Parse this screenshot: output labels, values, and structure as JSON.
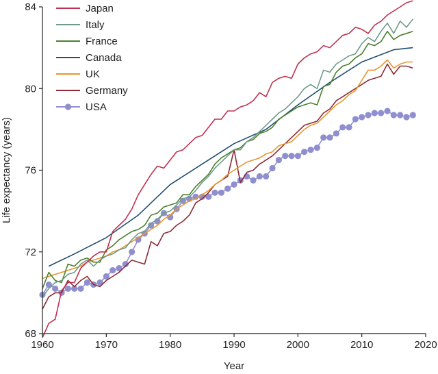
{
  "chart_data": {
    "type": "line",
    "xlabel": "Year",
    "ylabel": "Life expectancy (years)",
    "xlim": [
      1960,
      2020
    ],
    "ylim": [
      68,
      84
    ],
    "xticks": [
      "1960",
      "1970",
      "1980",
      "1990",
      "2000",
      "2010",
      "2020"
    ],
    "yticks": [
      "68",
      "72",
      "76",
      "80",
      "84"
    ],
    "grid": false,
    "legend_position": "top-left",
    "series": [
      {
        "name": "Japan",
        "color": "#c0304f",
        "marker": "none",
        "x": [
          1960,
          1961,
          1962,
          1963,
          1964,
          1965,
          1966,
          1967,
          1968,
          1969,
          1970,
          1971,
          1972,
          1973,
          1974,
          1975,
          1976,
          1977,
          1978,
          1979,
          1980,
          1981,
          1982,
          1983,
          1984,
          1985,
          1986,
          1987,
          1988,
          1989,
          1990,
          1991,
          1992,
          1993,
          1994,
          1995,
          1996,
          1997,
          1998,
          1999,
          2000,
          2001,
          2002,
          2003,
          2004,
          2005,
          2006,
          2007,
          2008,
          2009,
          2010,
          2011,
          2012,
          2013,
          2014,
          2015,
          2016,
          2017,
          2018
        ],
        "y": [
          67.8,
          68.5,
          68.7,
          70.1,
          70.5,
          70.5,
          71.2,
          71.5,
          71.8,
          72.0,
          72.0,
          73.0,
          73.3,
          73.6,
          74.1,
          74.8,
          75.3,
          75.8,
          76.2,
          76.1,
          76.5,
          76.9,
          77.0,
          77.3,
          77.6,
          77.7,
          78.1,
          78.5,
          78.5,
          78.9,
          78.9,
          79.1,
          79.2,
          79.4,
          79.8,
          79.6,
          80.3,
          80.5,
          80.6,
          80.5,
          81.2,
          81.5,
          81.7,
          81.8,
          82.1,
          82.0,
          82.3,
          82.6,
          82.7,
          83.0,
          82.9,
          82.7,
          83.1,
          83.3,
          83.6,
          83.8,
          84.0,
          84.2,
          84.3
        ]
      },
      {
        "name": "Italy",
        "color": "#6e9b8a",
        "marker": "none",
        "x": [
          1960,
          1961,
          1962,
          1963,
          1964,
          1965,
          1966,
          1967,
          1968,
          1969,
          1970,
          1971,
          1972,
          1973,
          1974,
          1975,
          1976,
          1977,
          1978,
          1979,
          1980,
          1981,
          1982,
          1983,
          1984,
          1985,
          1986,
          1987,
          1988,
          1989,
          1990,
          1991,
          1992,
          1993,
          1994,
          1995,
          1996,
          1997,
          1998,
          1999,
          2000,
          2001,
          2002,
          2003,
          2004,
          2005,
          2006,
          2007,
          2008,
          2009,
          2010,
          2011,
          2012,
          2013,
          2014,
          2015,
          2016,
          2017,
          2018
        ],
        "y": [
          69.8,
          70.2,
          70.5,
          70.6,
          70.9,
          71.0,
          71.4,
          71.6,
          71.3,
          71.6,
          71.8,
          71.9,
          72.1,
          72.2,
          72.6,
          72.9,
          73.0,
          73.4,
          73.6,
          73.9,
          74.0,
          74.3,
          74.6,
          74.7,
          75.0,
          75.4,
          75.7,
          76.1,
          76.4,
          76.7,
          77.0,
          77.0,
          77.4,
          77.6,
          77.9,
          78.2,
          78.5,
          78.8,
          79.0,
          79.3,
          79.6,
          80.0,
          80.2,
          80.0,
          80.9,
          80.8,
          81.2,
          81.4,
          81.6,
          81.7,
          82.2,
          82.5,
          82.3,
          82.8,
          83.2,
          82.7,
          83.3,
          83.0,
          83.4
        ]
      },
      {
        "name": "France",
        "color": "#4a7f2e",
        "marker": "none",
        "x": [
          1960,
          1961,
          1962,
          1963,
          1964,
          1965,
          1966,
          1967,
          1968,
          1969,
          1970,
          1971,
          1972,
          1973,
          1974,
          1975,
          1976,
          1977,
          1978,
          1979,
          1980,
          1981,
          1982,
          1983,
          1984,
          1985,
          1986,
          1987,
          1988,
          1989,
          1990,
          1991,
          1992,
          1993,
          1994,
          1995,
          1996,
          1997,
          1998,
          1999,
          2000,
          2001,
          2002,
          2003,
          2004,
          2005,
          2006,
          2007,
          2008,
          2009,
          2010,
          2011,
          2012,
          2013,
          2014,
          2015,
          2016,
          2017,
          2018
        ],
        "y": [
          70.2,
          71.0,
          70.6,
          70.5,
          71.4,
          71.3,
          71.6,
          71.7,
          71.5,
          71.5,
          72.1,
          72.3,
          72.6,
          72.8,
          73.0,
          73.1,
          73.3,
          73.8,
          73.9,
          74.2,
          74.3,
          74.4,
          74.8,
          74.8,
          75.2,
          75.5,
          75.8,
          76.3,
          76.6,
          76.8,
          77.0,
          77.1,
          77.4,
          77.5,
          77.8,
          77.9,
          78.1,
          78.5,
          78.7,
          78.9,
          79.1,
          79.2,
          79.3,
          79.2,
          80.1,
          80.2,
          80.8,
          81.1,
          81.2,
          81.5,
          81.7,
          82.2,
          82.1,
          82.3,
          82.8,
          82.4,
          82.6,
          82.7,
          82.8
        ]
      },
      {
        "name": "Canada",
        "color": "#1f4e6e",
        "marker": "none",
        "x": [
          1961,
          1965,
          1970,
          1975,
          1980,
          1985,
          1990,
          1995,
          2000,
          2005,
          2010,
          2015,
          2018
        ],
        "y": [
          71.3,
          71.9,
          72.7,
          73.8,
          75.3,
          76.3,
          77.3,
          78.0,
          79.2,
          80.3,
          81.3,
          81.9,
          82.0
        ]
      },
      {
        "name": "UK",
        "color": "#e8952d",
        "marker": "none",
        "x": [
          1960,
          1961,
          1962,
          1963,
          1964,
          1965,
          1966,
          1967,
          1968,
          1969,
          1970,
          1971,
          1972,
          1973,
          1974,
          1975,
          1976,
          1977,
          1978,
          1979,
          1980,
          1981,
          1982,
          1983,
          1984,
          1985,
          1986,
          1987,
          1988,
          1989,
          1990,
          1991,
          1992,
          1993,
          1994,
          1995,
          1996,
          1997,
          1998,
          1999,
          2000,
          2001,
          2002,
          2003,
          2004,
          2005,
          2006,
          2007,
          2008,
          2009,
          2010,
          2011,
          2012,
          2013,
          2014,
          2015,
          2016,
          2017,
          2018
        ],
        "y": [
          70.7,
          70.8,
          70.9,
          71.0,
          71.1,
          71.2,
          71.3,
          71.5,
          71.6,
          71.7,
          71.8,
          72.0,
          72.1,
          72.3,
          72.5,
          72.7,
          72.9,
          73.1,
          73.3,
          73.6,
          73.8,
          74.1,
          74.3,
          74.5,
          74.6,
          74.8,
          75.0,
          75.3,
          75.5,
          75.8,
          76.0,
          76.2,
          76.4,
          76.5,
          76.6,
          76.8,
          76.9,
          77.2,
          77.3,
          77.4,
          77.7,
          78.0,
          78.2,
          78.3,
          78.6,
          78.9,
          79.2,
          79.4,
          79.7,
          79.9,
          80.4,
          80.9,
          80.9,
          81.1,
          81.4,
          81.0,
          81.2,
          81.3,
          81.3
        ]
      },
      {
        "name": "Germany",
        "color": "#8b2a35",
        "marker": "none",
        "x": [
          1960,
          1961,
          1962,
          1963,
          1964,
          1965,
          1966,
          1967,
          1968,
          1969,
          1970,
          1971,
          1972,
          1973,
          1974,
          1975,
          1976,
          1977,
          1978,
          1979,
          1980,
          1981,
          1982,
          1983,
          1984,
          1985,
          1986,
          1987,
          1988,
          1989,
          1990,
          1991,
          1992,
          1993,
          1994,
          1995,
          1996,
          1997,
          1998,
          1999,
          2000,
          2001,
          2002,
          2003,
          2004,
          2005,
          2006,
          2007,
          2008,
          2009,
          2010,
          2011,
          2012,
          2013,
          2014,
          2015,
          2016,
          2017,
          2018
        ],
        "y": [
          69.2,
          69.8,
          70.0,
          70.0,
          70.6,
          70.3,
          70.6,
          70.8,
          70.4,
          70.3,
          70.6,
          70.8,
          71.0,
          71.3,
          71.6,
          71.5,
          71.4,
          72.5,
          72.3,
          72.9,
          73.0,
          73.3,
          73.5,
          73.8,
          74.4,
          74.6,
          74.9,
          75.3,
          75.5,
          75.7,
          77.0,
          75.4,
          75.9,
          76.0,
          76.3,
          76.5,
          76.7,
          77.0,
          77.3,
          77.6,
          77.9,
          78.2,
          78.3,
          78.4,
          78.8,
          79.0,
          79.4,
          79.6,
          79.8,
          80.0,
          80.2,
          80.4,
          80.5,
          80.6,
          81.2,
          80.7,
          81.1,
          81.1,
          81.0
        ]
      },
      {
        "name": "USA",
        "color": "#8f8fd0",
        "marker": "circle",
        "x": [
          1960,
          1961,
          1962,
          1963,
          1964,
          1965,
          1966,
          1967,
          1968,
          1969,
          1970,
          1971,
          1972,
          1973,
          1974,
          1975,
          1976,
          1977,
          1978,
          1979,
          1980,
          1981,
          1982,
          1983,
          1984,
          1985,
          1986,
          1987,
          1988,
          1989,
          1990,
          1991,
          1992,
          1993,
          1994,
          1995,
          1996,
          1997,
          1998,
          1999,
          2000,
          2001,
          2002,
          2003,
          2004,
          2005,
          2006,
          2007,
          2008,
          2009,
          2010,
          2011,
          2012,
          2013,
          2014,
          2015,
          2016,
          2017,
          2018
        ],
        "y": [
          69.9,
          70.4,
          70.2,
          70.0,
          70.2,
          70.2,
          70.2,
          70.5,
          70.4,
          70.5,
          70.8,
          71.1,
          71.2,
          71.4,
          72.0,
          72.6,
          72.9,
          73.3,
          73.5,
          73.9,
          73.7,
          74.1,
          74.5,
          74.6,
          74.7,
          74.7,
          74.7,
          74.9,
          74.9,
          75.1,
          75.3,
          75.5,
          75.7,
          75.5,
          75.7,
          75.7,
          76.1,
          76.5,
          76.7,
          76.7,
          76.7,
          76.9,
          77.0,
          77.1,
          77.6,
          77.6,
          77.8,
          78.1,
          78.1,
          78.5,
          78.6,
          78.7,
          78.8,
          78.8,
          78.9,
          78.7,
          78.7,
          78.6,
          78.7
        ]
      }
    ]
  }
}
